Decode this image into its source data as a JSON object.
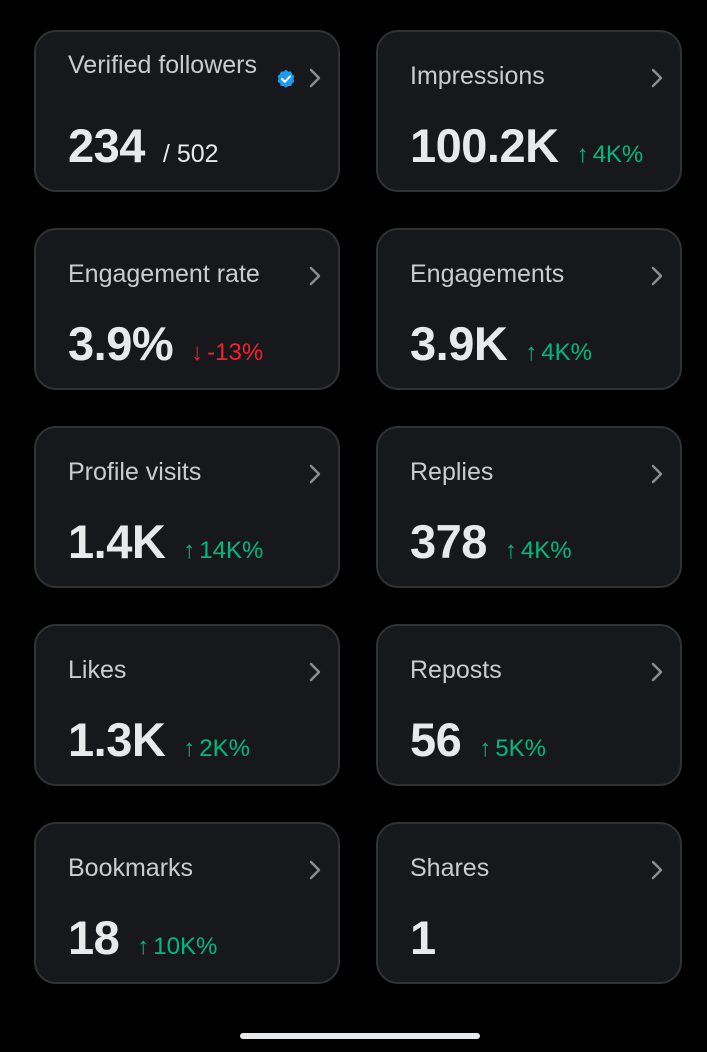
{
  "colors": {
    "background": "#000000",
    "card": "#16181c",
    "card_border": "#2f3336",
    "positive": "#00ba7c",
    "negative": "#f4212e",
    "verified": "#1d9bf0"
  },
  "cards": [
    {
      "label": "Verified followers",
      "value": "234",
      "sub": "/ 502",
      "icon": "verified-badge-icon"
    },
    {
      "label": "Impressions",
      "value": "100.2K",
      "delta": "4K%",
      "trend": "up"
    },
    {
      "label": "Engagement rate",
      "value": "3.9%",
      "delta": "-13%",
      "trend": "down"
    },
    {
      "label": "Engagements",
      "value": "3.9K",
      "delta": "4K%",
      "trend": "up"
    },
    {
      "label": "Profile visits",
      "value": "1.4K",
      "delta": "14K%",
      "trend": "up"
    },
    {
      "label": "Replies",
      "value": "378",
      "delta": "4K%",
      "trend": "up"
    },
    {
      "label": "Likes",
      "value": "1.3K",
      "delta": "2K%",
      "trend": "up"
    },
    {
      "label": "Reposts",
      "value": "56",
      "delta": "5K%",
      "trend": "up"
    },
    {
      "label": "Bookmarks",
      "value": "18",
      "delta": "10K%",
      "trend": "up"
    },
    {
      "label": "Shares",
      "value": "1"
    }
  ]
}
